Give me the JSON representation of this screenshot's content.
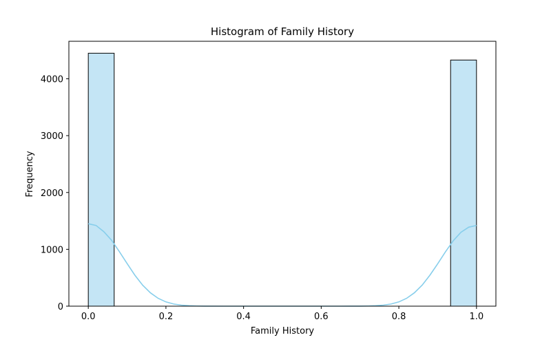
{
  "chart_data": {
    "type": "bar",
    "title": "Histogram of Family History",
    "xlabel": "Family History",
    "ylabel": "Frequency",
    "xlim": [
      -0.05,
      1.05
    ],
    "ylim": [
      0,
      4660
    ],
    "xticks": [
      {
        "value": 0.0,
        "label": "0.0"
      },
      {
        "value": 0.2,
        "label": "0.2"
      },
      {
        "value": 0.4,
        "label": "0.4"
      },
      {
        "value": 0.6,
        "label": "0.6"
      },
      {
        "value": 0.8,
        "label": "0.8"
      },
      {
        "value": 1.0,
        "label": "1.0"
      }
    ],
    "yticks": [
      {
        "value": 0,
        "label": "0"
      },
      {
        "value": 1000,
        "label": "1000"
      },
      {
        "value": 2000,
        "label": "2000"
      },
      {
        "value": 3000,
        "label": "3000"
      },
      {
        "value": 4000,
        "label": "4000"
      }
    ],
    "bins": [
      {
        "x0": 0.0,
        "x1": 0.0667,
        "count": 4450
      },
      {
        "x0": 0.9333,
        "x1": 1.0,
        "count": 4330
      }
    ],
    "kde": {
      "x": [
        0.0,
        0.02,
        0.04,
        0.06,
        0.08,
        0.1,
        0.12,
        0.14,
        0.16,
        0.18,
        0.2,
        0.22,
        0.24,
        0.26,
        0.28,
        0.3,
        0.35,
        0.4,
        0.5,
        0.6,
        0.65,
        0.7,
        0.72,
        0.74,
        0.76,
        0.78,
        0.8,
        0.82,
        0.84,
        0.86,
        0.88,
        0.9,
        0.92,
        0.94,
        0.96,
        0.98,
        1.0
      ],
      "y": [
        1450,
        1420,
        1310,
        1160,
        960,
        750,
        545,
        370,
        235,
        138,
        75,
        38,
        18,
        8,
        3,
        1,
        0,
        0,
        0,
        0,
        0,
        1,
        3,
        8,
        18,
        38,
        75,
        138,
        235,
        370,
        545,
        745,
        955,
        1150,
        1300,
        1390,
        1420
      ]
    },
    "colors": {
      "bar_fill": "#c4e5f5",
      "bar_edge": "#000000",
      "kde_line": "#87ceeb"
    },
    "grid": false,
    "legend": "none"
  }
}
